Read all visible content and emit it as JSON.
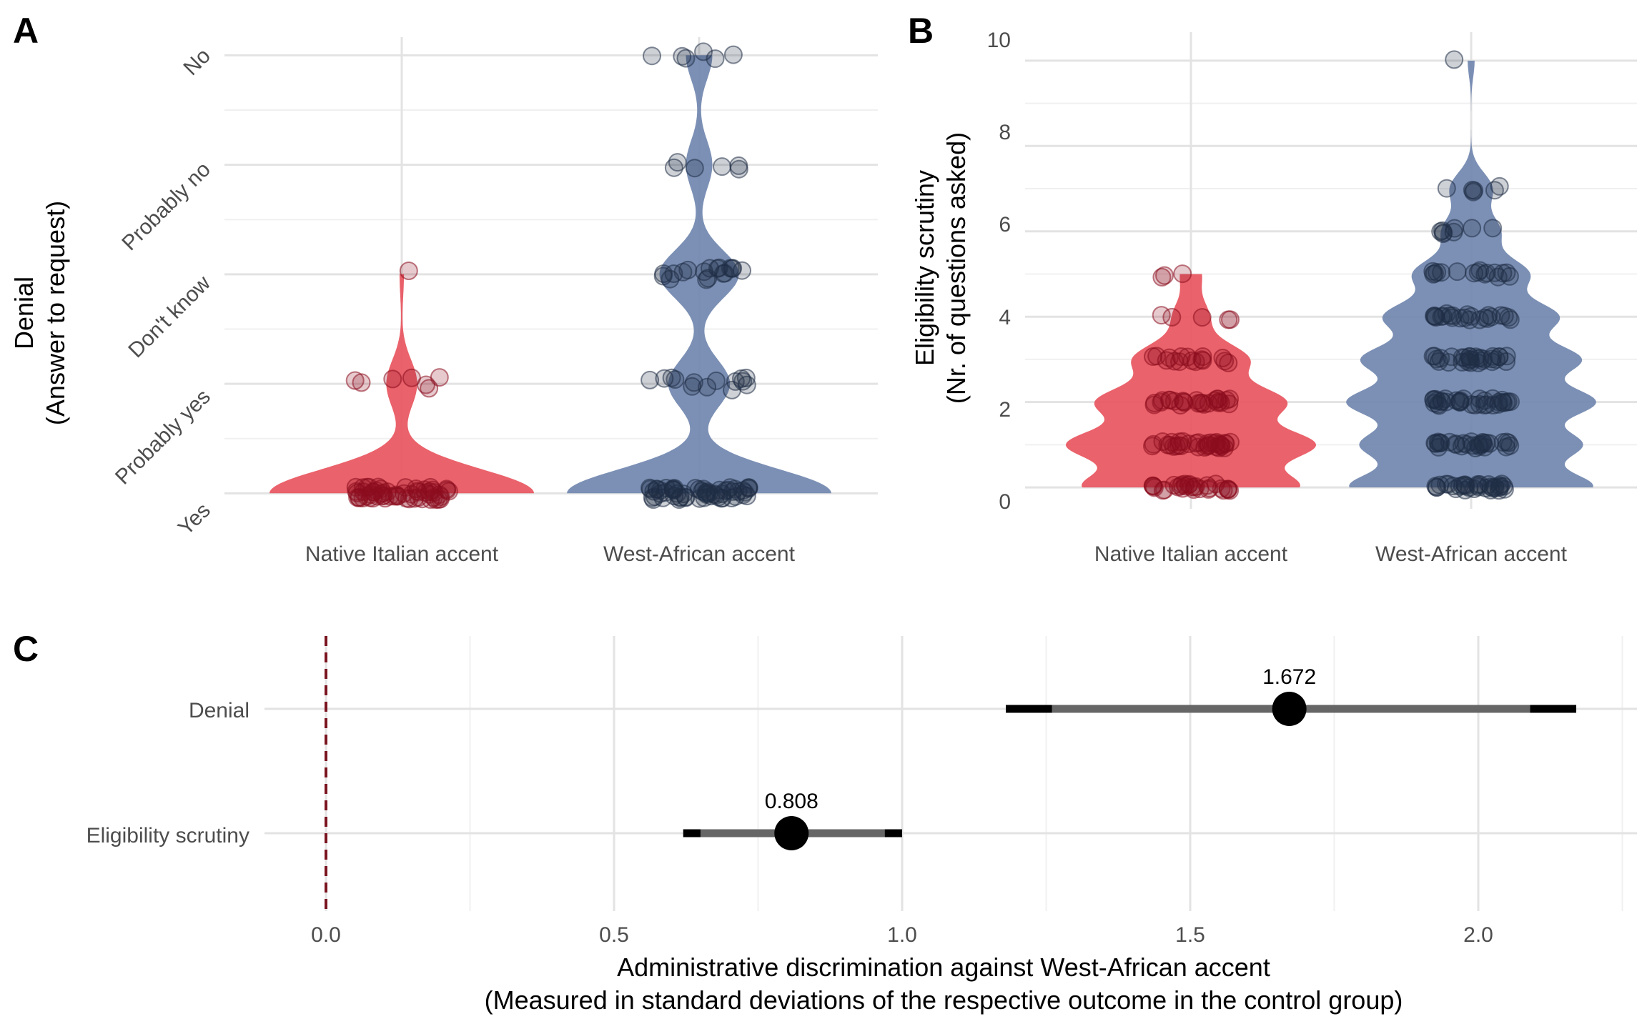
{
  "panels": {
    "a": {
      "letter": "A",
      "ylabel_line1": "Denial",
      "ylabel_line2": "(Answer to request)",
      "yticks": [
        "Yes",
        "Probably yes",
        "Don't know",
        "Probably no",
        "No"
      ],
      "xticks": [
        "Native Italian accent",
        "West-African accent"
      ]
    },
    "b": {
      "letter": "B",
      "ylabel_line1": "Eligibility scrutiny",
      "ylabel_line2": "(Nr. of questions asked)",
      "yticks": [
        "0",
        "2",
        "4",
        "6",
        "8",
        "10"
      ],
      "xticks": [
        "Native Italian accent",
        "West-African accent"
      ]
    },
    "c": {
      "letter": "C",
      "xlabel_line1": "Administrative discrimination against West-African accent",
      "xlabel_line2": "(Measured in standard deviations of the respective outcome in the control group)",
      "yticks": [
        "Denial",
        "Eligibility scrutiny"
      ],
      "xticks": [
        "0.0",
        "0.5",
        "1.0",
        "1.5",
        "2.0"
      ]
    }
  },
  "colors": {
    "native_fill": "#e8515b",
    "west_fill": "#6e84ad",
    "native_point": "#8b0d1e",
    "west_point": "#1f2e45",
    "estimate": "#000000",
    "ci_inner": "#666666",
    "reference_line": "#7a1520"
  },
  "chart_data": [
    {
      "type": "violin",
      "panel": "A",
      "categories": [
        "Native Italian accent",
        "West-African accent"
      ],
      "y_levels": [
        "Yes",
        "Probably yes",
        "Don't know",
        "Probably no",
        "No"
      ],
      "y_values": [
        0,
        1,
        2,
        3,
        4
      ],
      "ylim": [
        -0.05,
        4.1
      ],
      "series": [
        {
          "name": "Native Italian accent",
          "points": [
            {
              "y": 0,
              "count": 60
            },
            {
              "y": 1,
              "count": 7
            },
            {
              "y": 2,
              "count": 1
            }
          ]
        },
        {
          "name": "West-African accent",
          "points": [
            {
              "y": 0,
              "count": 60
            },
            {
              "y": 1,
              "count": 14
            },
            {
              "y": 2,
              "count": 18
            },
            {
              "y": 3,
              "count": 6
            },
            {
              "y": 4,
              "count": 6
            }
          ]
        }
      ]
    },
    {
      "type": "violin",
      "panel": "B",
      "categories": [
        "Native Italian accent",
        "West-African accent"
      ],
      "ylim": [
        -0.3,
        10.5
      ],
      "y_ticks": [
        0,
        2,
        4,
        6,
        8,
        10
      ],
      "series": [
        {
          "name": "Native Italian accent",
          "points": [
            {
              "y": 0,
              "count": 30
            },
            {
              "y": 1,
              "count": 34
            },
            {
              "y": 2,
              "count": 26
            },
            {
              "y": 3,
              "count": 16
            },
            {
              "y": 4,
              "count": 5
            },
            {
              "y": 5,
              "count": 3
            }
          ]
        },
        {
          "name": "West-African accent",
          "points": [
            {
              "y": 0,
              "count": 34
            },
            {
              "y": 1,
              "count": 30
            },
            {
              "y": 2,
              "count": 34
            },
            {
              "y": 3,
              "count": 30
            },
            {
              "y": 4,
              "count": 24
            },
            {
              "y": 5,
              "count": 16
            },
            {
              "y": 6,
              "count": 8
            },
            {
              "y": 7,
              "count": 6
            },
            {
              "y": 10,
              "count": 1
            }
          ]
        }
      ]
    },
    {
      "type": "forest",
      "panel": "C",
      "xlim": [
        -0.1,
        2.25
      ],
      "reference_x": 0,
      "rows": [
        {
          "label": "Denial",
          "estimate": 1.672,
          "estimate_label": "1.672",
          "ci90": [
            1.26,
            2.09
          ],
          "ci95": [
            1.18,
            2.17
          ]
        },
        {
          "label": "Eligibility scrutiny",
          "estimate": 0.808,
          "estimate_label": "0.808",
          "ci90": [
            0.65,
            0.97
          ],
          "ci95": [
            0.62,
            1.0
          ]
        }
      ]
    }
  ]
}
